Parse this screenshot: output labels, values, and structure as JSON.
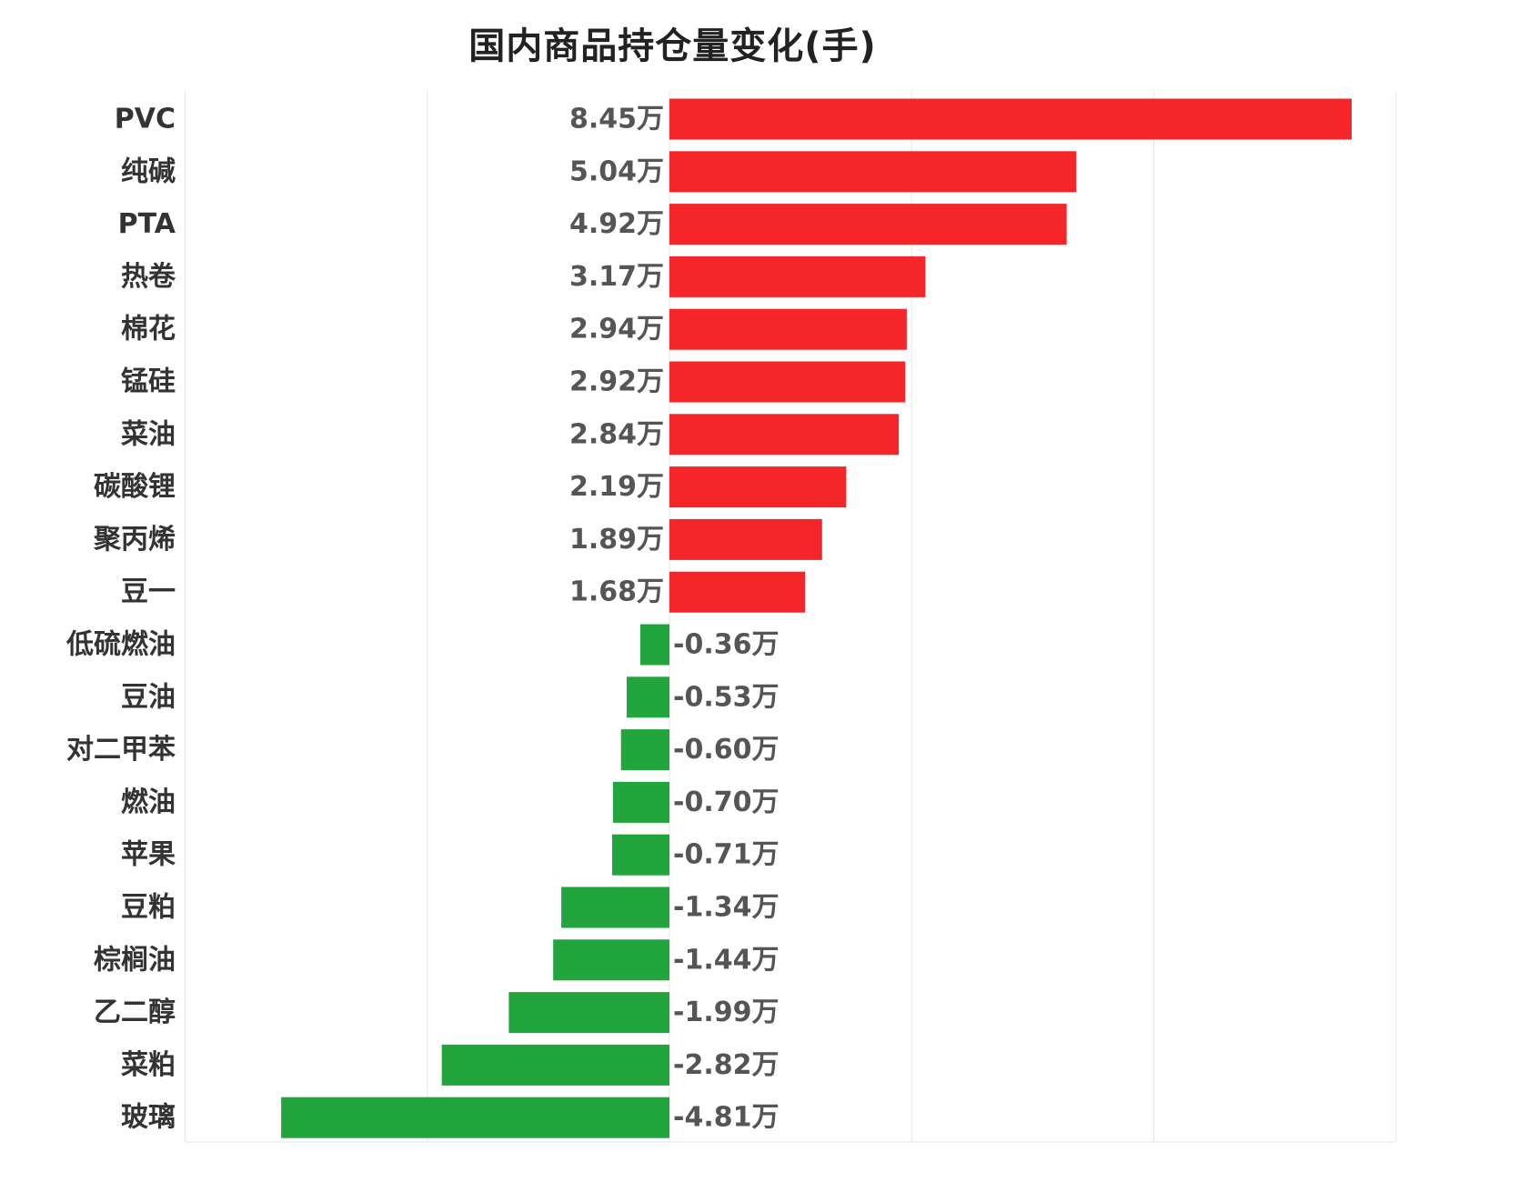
{
  "chart_data": {
    "type": "bar",
    "orientation": "horizontal",
    "title": "国内商品持仓量变化(手)",
    "categories": [
      "PVC",
      "纯碱",
      "PTA",
      "热卷",
      "棉花",
      "锰硅",
      "菜油",
      "碳酸锂",
      "聚丙烯",
      "豆一",
      "低硫燃油",
      "豆油",
      "对二甲苯",
      "燃油",
      "苹果",
      "豆粕",
      "棕榈油",
      "乙二醇",
      "菜粕",
      "玻璃"
    ],
    "values": [
      84500,
      50400,
      49200,
      31700,
      29400,
      29200,
      28400,
      21900,
      18900,
      16800,
      -3600,
      -5300,
      -6000,
      -7000,
      -7100,
      -13400,
      -14400,
      -19900,
      -28200,
      -48100
    ],
    "value_labels": [
      "8.45万",
      "5.04万",
      "4.92万",
      "3.17万",
      "2.94万",
      "2.92万",
      "2.84万",
      "2.19万",
      "1.89万",
      "1.68万",
      "-0.36万",
      "-0.53万",
      "-0.60万",
      "-0.70万",
      "-0.71万",
      "-1.34万",
      "-1.44万",
      "-1.99万",
      "-2.82万",
      "-4.81万"
    ],
    "xlim": [
      -60000,
      90000
    ],
    "xlabel": "",
    "ylabel": "",
    "grid": true,
    "legend": "none",
    "colors": {
      "positive": "#f5262a",
      "negative": "#22a53d",
      "grid": "#e6e6e6",
      "category_text": "#333333",
      "value_text": "#555555"
    }
  }
}
